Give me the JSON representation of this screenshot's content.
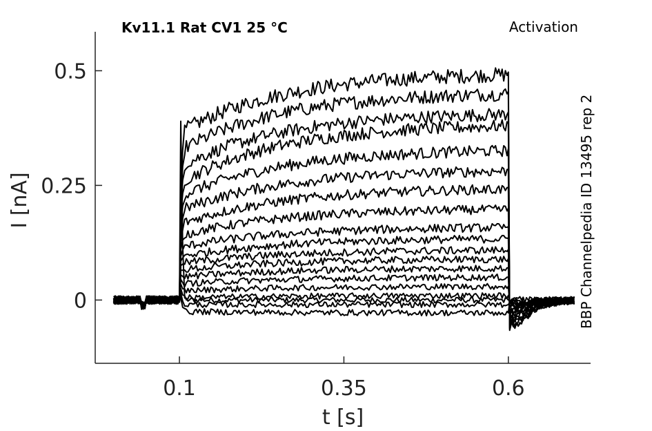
{
  "chart_data": {
    "type": "line",
    "title": "Kv11.1  Rat  CV1  25 °C",
    "protocol_label": "Activation",
    "source_label": "BBP Channelpedia ID 13495 rep 2",
    "xlabel": "t [s]",
    "ylabel": "I [nA]",
    "xlim": [
      -0.028,
      0.725
    ],
    "ylim": [
      -0.138,
      0.585
    ],
    "xticks": [
      0.1,
      0.35,
      0.6
    ],
    "xtick_labels": [
      "0.1",
      "0.35",
      "0.6"
    ],
    "yticks": [
      0,
      0.25,
      0.5
    ],
    "ytick_labels": [
      "0",
      "0.25",
      "0.5"
    ],
    "grid": false,
    "stimulus_window_s": [
      0.1,
      0.6
    ],
    "trace_x_range_s": [
      0.0,
      0.7
    ],
    "series": [
      {
        "peak_onset": 0.39,
        "start": 0.0,
        "end": 0.0,
        "tail": 0.0
      },
      {
        "peak_onset": 0.24,
        "start": 0.365,
        "end": 0.497,
        "tail": -0.11
      },
      {
        "peak_onset": 0.215,
        "start": 0.325,
        "end": 0.455,
        "tail": -0.105
      },
      {
        "peak_onset": 0.195,
        "start": 0.29,
        "end": 0.41,
        "tail": -0.1
      },
      {
        "peak_onset": 0.18,
        "start": 0.255,
        "end": 0.385,
        "tail": -0.095
      },
      {
        "peak_onset": 0.16,
        "start": 0.225,
        "end": 0.33,
        "tail": -0.085
      },
      {
        "peak_onset": 0.14,
        "start": 0.195,
        "end": 0.285,
        "tail": -0.075
      },
      {
        "peak_onset": 0.125,
        "start": 0.165,
        "end": 0.245,
        "tail": -0.065
      },
      {
        "peak_onset": 0.11,
        "start": 0.14,
        "end": 0.2,
        "tail": -0.055
      },
      {
        "peak_onset": 0.095,
        "start": 0.115,
        "end": 0.16,
        "tail": -0.045
      },
      {
        "peak_onset": 0.085,
        "start": 0.095,
        "end": 0.135,
        "tail": -0.04
      },
      {
        "peak_onset": 0.075,
        "start": 0.08,
        "end": 0.11,
        "tail": -0.035
      },
      {
        "peak_onset": 0.065,
        "start": 0.065,
        "end": 0.09,
        "tail": -0.03
      },
      {
        "peak_onset": 0.055,
        "start": 0.05,
        "end": 0.07,
        "tail": -0.025
      },
      {
        "peak_onset": 0.045,
        "start": 0.035,
        "end": 0.05,
        "tail": -0.02
      },
      {
        "peak_onset": 0.035,
        "start": 0.02,
        "end": 0.03,
        "tail": -0.015
      },
      {
        "peak_onset": 0.025,
        "start": 0.005,
        "end": 0.01,
        "tail": -0.01
      },
      {
        "peak_onset": 0.015,
        "start": -0.01,
        "end": -0.01,
        "tail": -0.008
      },
      {
        "peak_onset": 0.005,
        "start": -0.025,
        "end": -0.028,
        "tail": -0.005
      }
    ]
  }
}
